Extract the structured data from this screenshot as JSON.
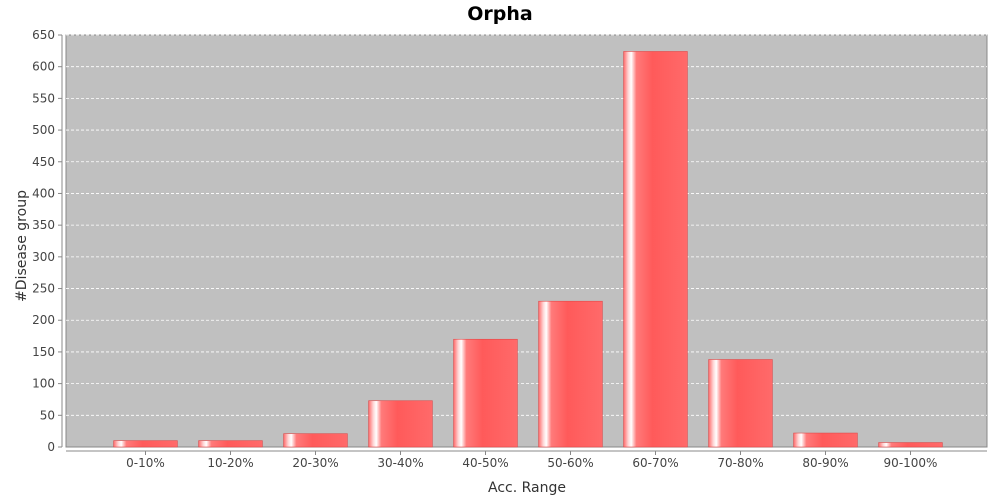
{
  "chart_data": {
    "type": "bar",
    "title": "Orpha",
    "xlabel": "Acc. Range",
    "ylabel": "#Disease group",
    "categories": [
      "0-10%",
      "10-20%",
      "20-30%",
      "30-40%",
      "40-50%",
      "50-60%",
      "60-70%",
      "70-80%",
      "80-90%",
      "90-100%"
    ],
    "values": [
      10,
      10,
      21,
      73,
      170,
      230,
      624,
      138,
      22,
      7
    ],
    "ylim": [
      0,
      650
    ],
    "yticks": [
      0,
      50,
      100,
      150,
      200,
      250,
      300,
      350,
      400,
      450,
      500,
      550,
      600,
      650
    ],
    "grid": true,
    "colors": {
      "plot_background": "#c0c0c0",
      "bar": "#ff5a5a",
      "bar_highlight": "#ffffff",
      "gridline": "#ffffff"
    }
  }
}
